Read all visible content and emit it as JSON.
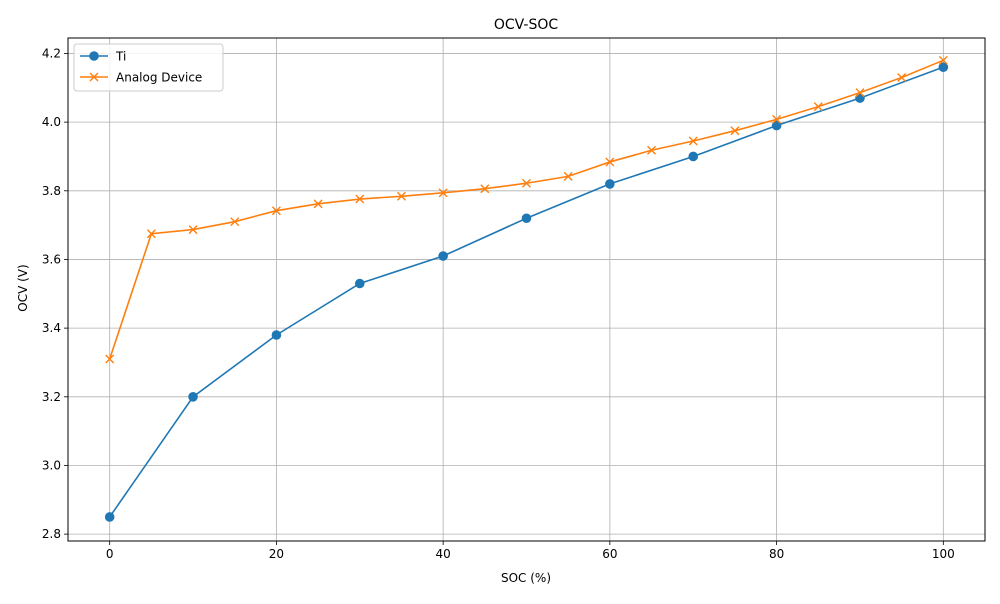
{
  "chart_data": {
    "type": "line",
    "title": "OCV-SOC",
    "xlabel": "SOC (%)",
    "ylabel": "OCV (V)",
    "xlim": [
      -5,
      105
    ],
    "ylim": [
      2.78,
      4.245
    ],
    "xticks": [
      0,
      20,
      40,
      60,
      80,
      100
    ],
    "yticks": [
      2.8,
      3.0,
      3.2,
      3.4,
      3.6,
      3.8,
      4.0,
      4.2
    ],
    "xtick_labels": [
      "0",
      "20",
      "40",
      "60",
      "80",
      "100"
    ],
    "ytick_labels": [
      "2.8",
      "3.0",
      "3.2",
      "3.4",
      "3.6",
      "3.8",
      "4.0",
      "4.2"
    ],
    "grid": true,
    "legend_position": "top-left",
    "series": [
      {
        "name": "Ti",
        "color": "#1f77b4",
        "marker": "circle",
        "x": [
          0,
          10,
          20,
          30,
          40,
          50,
          60,
          70,
          80,
          90,
          100
        ],
        "y": [
          2.85,
          3.2,
          3.38,
          3.53,
          3.61,
          3.72,
          3.82,
          3.9,
          3.99,
          4.07,
          4.16
        ]
      },
      {
        "name": "Analog Device",
        "color": "#ff7f0e",
        "marker": "x",
        "x": [
          0,
          5,
          10,
          15,
          20,
          25,
          30,
          35,
          40,
          45,
          50,
          55,
          60,
          65,
          70,
          75,
          80,
          85,
          90,
          95,
          100
        ],
        "y": [
          3.31,
          3.675,
          3.687,
          3.71,
          3.742,
          3.762,
          3.776,
          3.784,
          3.794,
          3.806,
          3.822,
          3.842,
          3.884,
          3.918,
          3.945,
          3.975,
          4.008,
          4.045,
          4.086,
          4.13,
          4.18
        ]
      }
    ]
  }
}
